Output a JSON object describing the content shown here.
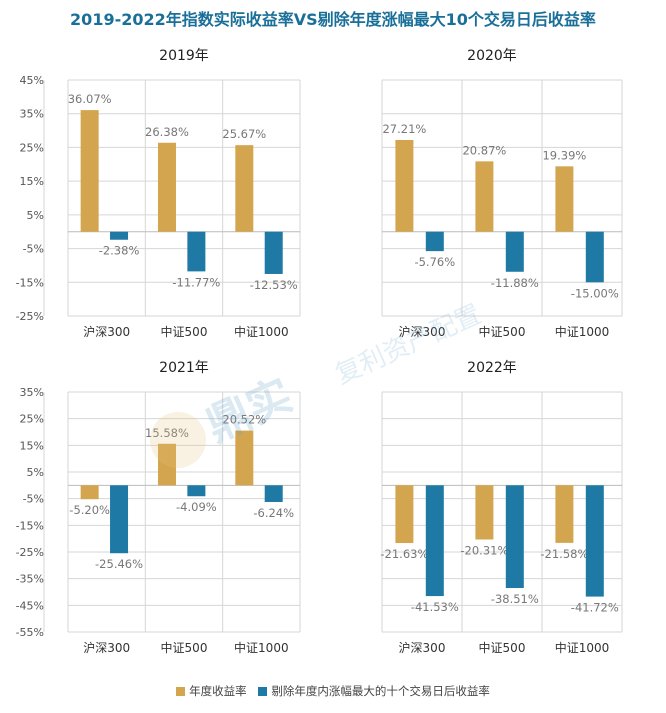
{
  "title": "2019-2022年指数实际收益率VS剔除年度涨幅最大10个交易日后收益率",
  "legend": {
    "series_a": "年度收益率",
    "series_b": "剔除年度内涨幅最大的十个交易日后收益率"
  },
  "colors": {
    "series_a": "#d4a54f",
    "series_b": "#1e79a4",
    "title": "#1a6f99",
    "grid": "#d6d6d6"
  },
  "chart_data": [
    {
      "type": "bar",
      "title": "2019年",
      "categories": [
        "沪深300",
        "中证500",
        "中证1000"
      ],
      "series": [
        {
          "name": "年度收益率",
          "values": [
            36.07,
            26.38,
            25.67
          ],
          "labels": [
            "36.07%",
            "26.38%",
            "25.67%"
          ]
        },
        {
          "name": "剔除年度内涨幅最大的十个交易日后收益率",
          "values": [
            -2.38,
            -11.77,
            -12.53
          ],
          "labels": [
            "-2.38%",
            "-11.77%",
            "-12.53%"
          ]
        }
      ],
      "ylim": [
        -25,
        45
      ],
      "yticks": [
        45,
        35,
        25,
        15,
        5,
        -5,
        -15,
        -25
      ],
      "ytick_labels": [
        "45%",
        "35%",
        "25%",
        "15%",
        "5%",
        "-5%",
        "-15%",
        "-25%"
      ]
    },
    {
      "type": "bar",
      "title": "2020年",
      "categories": [
        "沪深300",
        "中证500",
        "中证1000"
      ],
      "series": [
        {
          "name": "年度收益率",
          "values": [
            27.21,
            20.87,
            19.39
          ],
          "labels": [
            "27.21%",
            "20.87%",
            "19.39%"
          ]
        },
        {
          "name": "剔除年度内涨幅最大的十个交易日后收益率",
          "values": [
            -5.76,
            -11.88,
            -15.0
          ],
          "labels": [
            "-5.76%",
            "-11.88%",
            "-15.00%"
          ]
        }
      ],
      "ylim": [
        -25,
        45
      ]
    },
    {
      "type": "bar",
      "title": "2021年",
      "categories": [
        "沪深300",
        "中证500",
        "中证1000"
      ],
      "series": [
        {
          "name": "年度收益率",
          "values": [
            -5.2,
            15.58,
            20.52
          ],
          "labels": [
            "-5.20%",
            "15.58%",
            "20.52%"
          ]
        },
        {
          "name": "剔除年度内涨幅最大的十个交易日后收益率",
          "values": [
            -25.46,
            -4.09,
            -6.24
          ],
          "labels": [
            "-25.46%",
            "-4.09%",
            "-6.24%"
          ]
        }
      ],
      "ylim": [
        -55,
        35
      ],
      "yticks": [
        35,
        25,
        15,
        5,
        -5,
        -15,
        -25,
        -35,
        -45,
        -55
      ],
      "ytick_labels": [
        "35%",
        "25%",
        "15%",
        "5%",
        "-5%",
        "-15%",
        "-25%",
        "-35%",
        "-45%",
        "-55%"
      ]
    },
    {
      "type": "bar",
      "title": "2022年",
      "categories": [
        "沪深300",
        "中证500",
        "中证1000"
      ],
      "series": [
        {
          "name": "年度收益率",
          "values": [
            -21.63,
            -20.31,
            -21.58
          ],
          "labels": [
            "-21.63%",
            "-20.31%",
            "-21.58%"
          ]
        },
        {
          "name": "剔除年度内涨幅最大的十个交易日后收益率",
          "values": [
            -41.53,
            -38.51,
            -41.72
          ],
          "labels": [
            "-41.53%",
            "-38.51%",
            "-41.72%"
          ]
        }
      ],
      "ylim": [
        -55,
        35
      ]
    }
  ],
  "watermark": {
    "brand": "鼎实",
    "subtitle": "复利资产配置"
  }
}
